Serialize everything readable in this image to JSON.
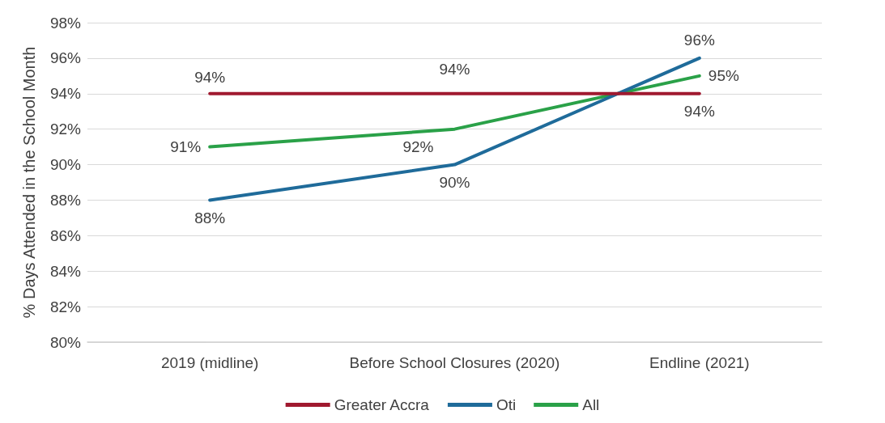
{
  "chart_data": {
    "type": "line",
    "ylabel": "% Days Attended in the School Month",
    "categories": [
      "2019 (midline)",
      "Before School Closures (2020)",
      "Endline (2021)"
    ],
    "series": [
      {
        "name": "Greater Accra",
        "color": "#a0192f",
        "values": [
          94,
          94,
          94
        ],
        "value_labels": [
          "94%",
          "94%",
          "94%"
        ]
      },
      {
        "name": "Oti",
        "color": "#1f6b9a",
        "values": [
          88,
          90,
          96
        ],
        "value_labels": [
          "88%",
          "90%",
          "96%"
        ]
      },
      {
        "name": "All",
        "color": "#2aa148",
        "values": [
          91,
          92,
          95
        ],
        "value_labels": [
          "91%",
          "92%",
          "95%"
        ]
      }
    ],
    "ylim": [
      80,
      98
    ],
    "yticks": [
      {
        "value": 80,
        "label": "80%"
      },
      {
        "value": 82,
        "label": "82%"
      },
      {
        "value": 84,
        "label": "84%"
      },
      {
        "value": 86,
        "label": "86%"
      },
      {
        "value": 88,
        "label": "88%"
      },
      {
        "value": 90,
        "label": "90%"
      },
      {
        "value": 92,
        "label": "92%"
      },
      {
        "value": 94,
        "label": "94%"
      },
      {
        "value": 96,
        "label": "96%"
      },
      {
        "value": 98,
        "label": "98%"
      }
    ],
    "grid": "y",
    "legend": "bottom",
    "marker": "none",
    "line_style": "solid"
  }
}
